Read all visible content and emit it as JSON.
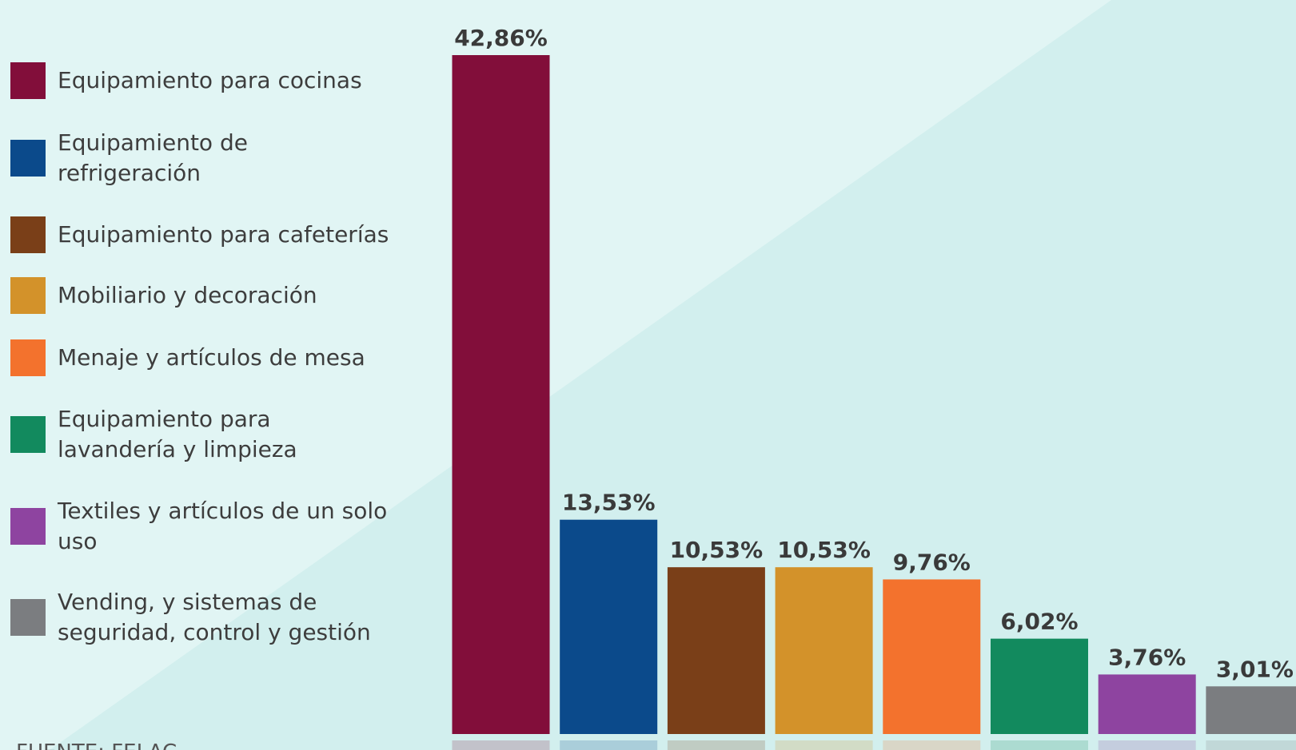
{
  "chart_data": {
    "type": "bar",
    "categories": [
      "Equipamiento para cocinas",
      "Equipamiento de refrigeración",
      "Equipamiento para cafeterías",
      "Mobiliario y decoración",
      "Menaje y artículos de mesa",
      "Equipamiento para lavandería y limpieza",
      "Textiles y artículos de un solo uso",
      "Vending, y sistemas de seguridad, control y gestión"
    ],
    "values": [
      42.86,
      13.53,
      10.53,
      10.53,
      9.76,
      6.02,
      3.76,
      3.01
    ],
    "value_labels": [
      "42,86%",
      "13,53%",
      "10,53%",
      "10,53%",
      "9,76%",
      "6,02%",
      "3,76%",
      "3,01%"
    ],
    "colors": [
      "#820e3a",
      "#0b4a8b",
      "#7a3f18",
      "#d3922a",
      "#f3722d",
      "#128a5e",
      "#8e44a0",
      "#7b7d80"
    ],
    "source": "FUENTE: FELAC"
  }
}
